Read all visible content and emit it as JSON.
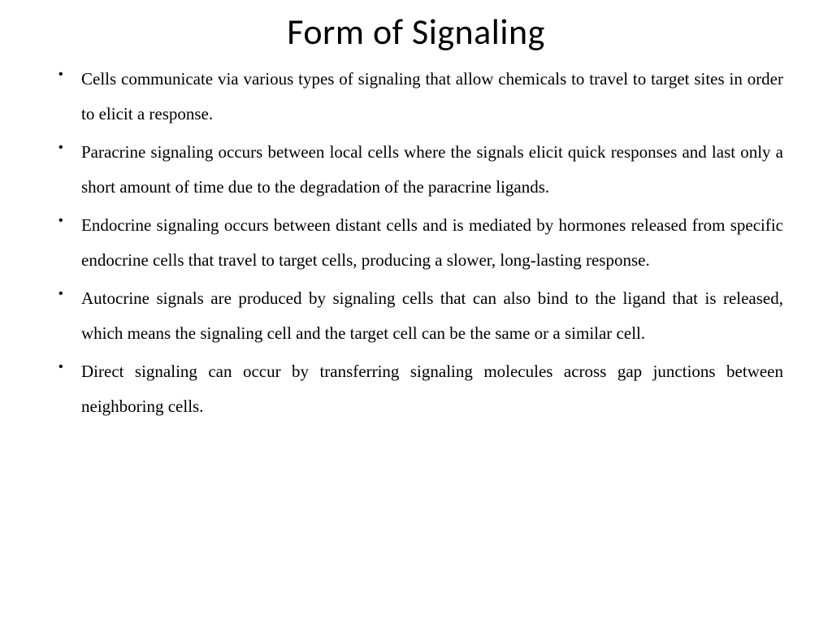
{
  "slide": {
    "title": "Form of Signaling",
    "bullets": [
      "Cells communicate via various types of signaling that allow chemicals to travel to target sites in order to elicit a response.",
      "Paracrine signaling occurs between local cells where the signals elicit quick responses and last only a short amount of time due to the degradation of the paracrine ligands.",
      "Endocrine signaling occurs between distant cells and is mediated by hormones released from specific endocrine cells that travel to target cells, producing a slower, long-lasting response.",
      "Autocrine signals are produced by signaling cells that can also bind to the ligand that is released, which means the signaling cell and the target cell can be the same or a similar cell.",
      "Direct signaling can occur by transferring signaling molecules across gap junctions between neighboring cells."
    ]
  },
  "style": {
    "background_color": "#ffffff",
    "title_font": "Calibri",
    "title_fontsize": 44,
    "title_color": "#000000",
    "body_font": "Garamond",
    "body_fontsize": 21,
    "body_color": "#000000",
    "line_height": 2.05,
    "text_align": "justify",
    "bullet_char": "•"
  }
}
